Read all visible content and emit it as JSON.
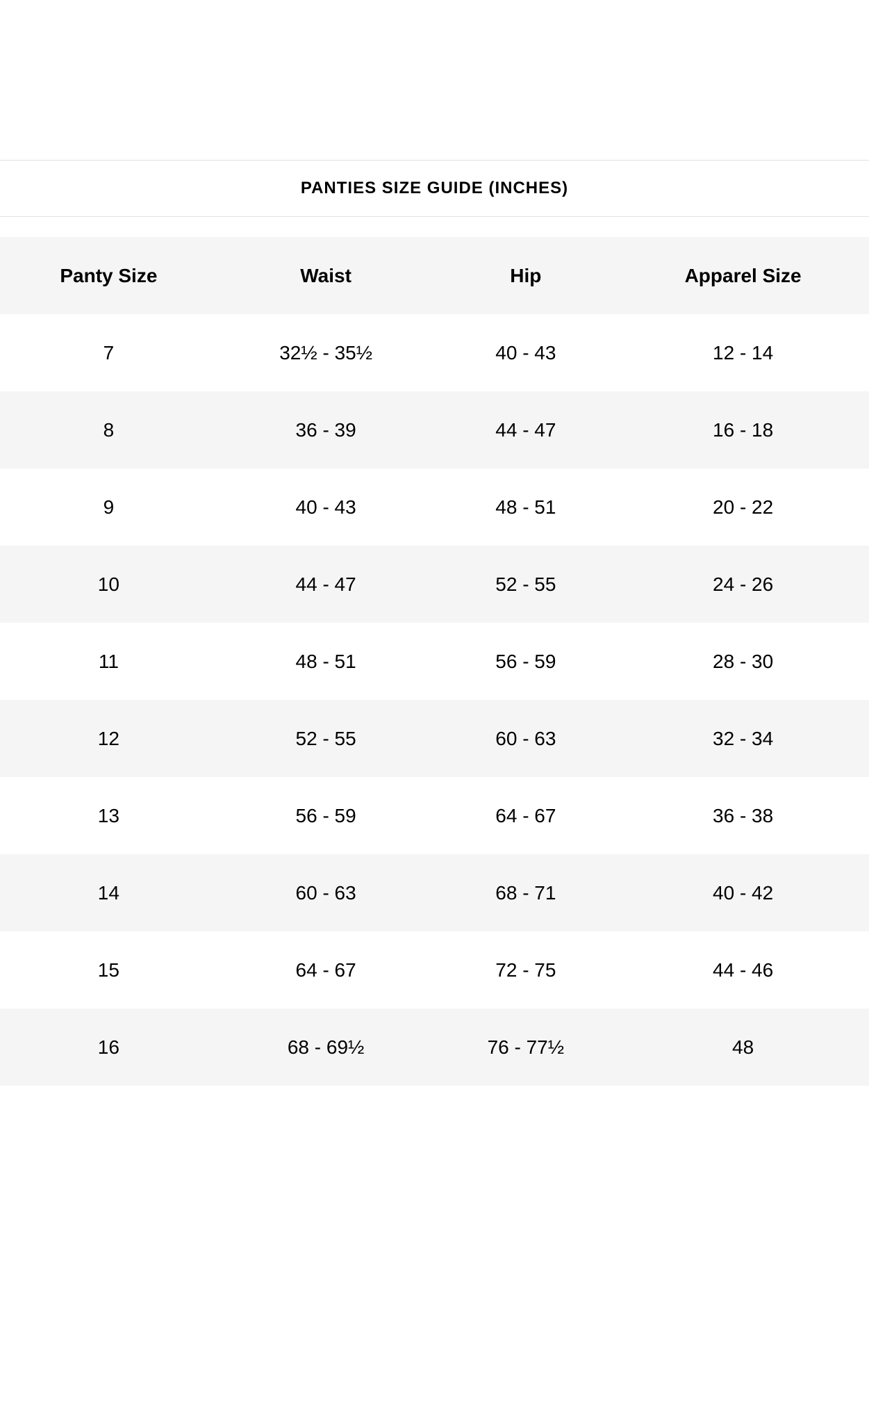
{
  "header": {
    "title": "PANTIES SIZE GUIDE (INCHES)"
  },
  "table": {
    "columns": [
      "Panty Size",
      "Waist",
      "Hip",
      "Apparel Size"
    ],
    "column_keys": [
      "panty-size",
      "waist",
      "hip",
      "apparel-size"
    ],
    "rows": [
      [
        "7",
        "32½ - 35½",
        "40 - 43",
        "12 - 14"
      ],
      [
        "8",
        "36 - 39",
        "44 - 47",
        "16 - 18"
      ],
      [
        "9",
        "40 - 43",
        "48 - 51",
        "20 - 22"
      ],
      [
        "10",
        "44 - 47",
        "52 - 55",
        "24 - 26"
      ],
      [
        "11",
        "48 - 51",
        "56 - 59",
        "28 - 30"
      ],
      [
        "12",
        "52 - 55",
        "60 - 63",
        "32 - 34"
      ],
      [
        "13",
        "56 - 59",
        "64 - 67",
        "36 - 38"
      ],
      [
        "14",
        "60 - 63",
        "68 - 71",
        "40 - 42"
      ],
      [
        "15",
        "64 - 67",
        "72 - 75",
        "44 - 46"
      ],
      [
        "16",
        "68 - 69½",
        "76 - 77½",
        "48"
      ]
    ]
  },
  "colors": {
    "stripe_bg": "#f5f5f5",
    "rule": "#e2e2e2",
    "text": "#000000"
  }
}
